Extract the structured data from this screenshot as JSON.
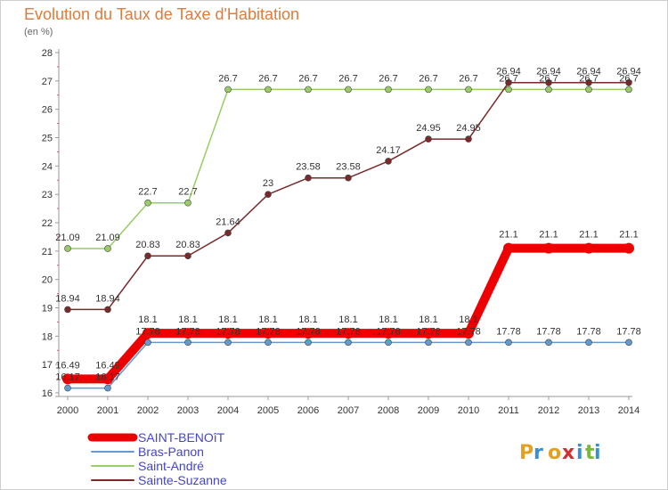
{
  "title": "Evolution du Taux de Taxe d'Habitation",
  "unit": "(en %)",
  "brand": "Proxiti",
  "chart_data": {
    "type": "line",
    "title": "Evolution du Taux de Taxe d'Habitation",
    "ylabel": "(en %)",
    "xlabel": "",
    "x": [
      2000,
      2001,
      2002,
      2003,
      2004,
      2005,
      2006,
      2007,
      2008,
      2009,
      2010,
      2011,
      2012,
      2013,
      2014
    ],
    "ylim": [
      16,
      28
    ],
    "yticks": [
      16,
      17,
      18,
      19,
      20,
      21,
      22,
      23,
      24,
      25,
      26,
      27,
      28
    ],
    "grid": false,
    "legend_position": "bottom-left",
    "series": [
      {
        "name": "SAINT-BENOîT",
        "color": "#ee0000",
        "values": [
          16.49,
          16.49,
          18.1,
          18.1,
          18.1,
          18.1,
          18.1,
          18.1,
          18.1,
          18.1,
          18.1,
          21.1,
          21.1,
          21.1,
          21.1
        ],
        "labels": [
          "16.49",
          "16.49",
          "18.1",
          "18.1",
          "18.1",
          "18.1",
          "18.1",
          "18.1",
          "18.1",
          "18.1",
          "18.1",
          "21.1",
          "21.1",
          "21.1",
          "21.1"
        ]
      },
      {
        "name": "Bras-Panon",
        "color": "#6699cc",
        "values": [
          16.17,
          16.17,
          17.78,
          17.78,
          17.78,
          17.78,
          17.78,
          17.78,
          17.78,
          17.78,
          17.78,
          17.78,
          17.78,
          17.78,
          17.78
        ],
        "labels": [
          "16.17",
          "16.17",
          "17.78",
          "17.78",
          "17.78",
          "17.78",
          "17.78",
          "17.78",
          "17.78",
          "17.78",
          "17.78",
          "17.78",
          "17.78",
          "17.78",
          "17.78"
        ]
      },
      {
        "name": "Saint-André",
        "color": "#99cc66",
        "values": [
          21.09,
          21.09,
          22.7,
          22.7,
          26.7,
          26.7,
          26.7,
          26.7,
          26.7,
          26.7,
          26.7,
          26.7,
          26.7,
          26.7,
          26.7
        ],
        "labels": [
          "21.09",
          "21.09",
          "22.7",
          "22.7",
          "26.7",
          "26.7",
          "26.7",
          "26.7",
          "26.7",
          "26.7",
          "26.7",
          "26.7",
          "26.7",
          "26.7",
          "26.7"
        ]
      },
      {
        "name": "Sainte-Suzanne",
        "color": "#7a2a2a",
        "values": [
          18.94,
          18.94,
          20.83,
          20.83,
          21.64,
          23.0,
          23.58,
          23.58,
          24.17,
          24.95,
          24.95,
          26.94,
          26.94,
          26.94,
          26.94
        ],
        "labels": [
          "18.94",
          "18.94",
          "20.83",
          "20.83",
          "21.64",
          "23",
          "23.58",
          "23.58",
          "24.17",
          "24.95",
          "24.95",
          "26.94",
          "26.94",
          "26.94",
          "26.94"
        ]
      }
    ]
  }
}
